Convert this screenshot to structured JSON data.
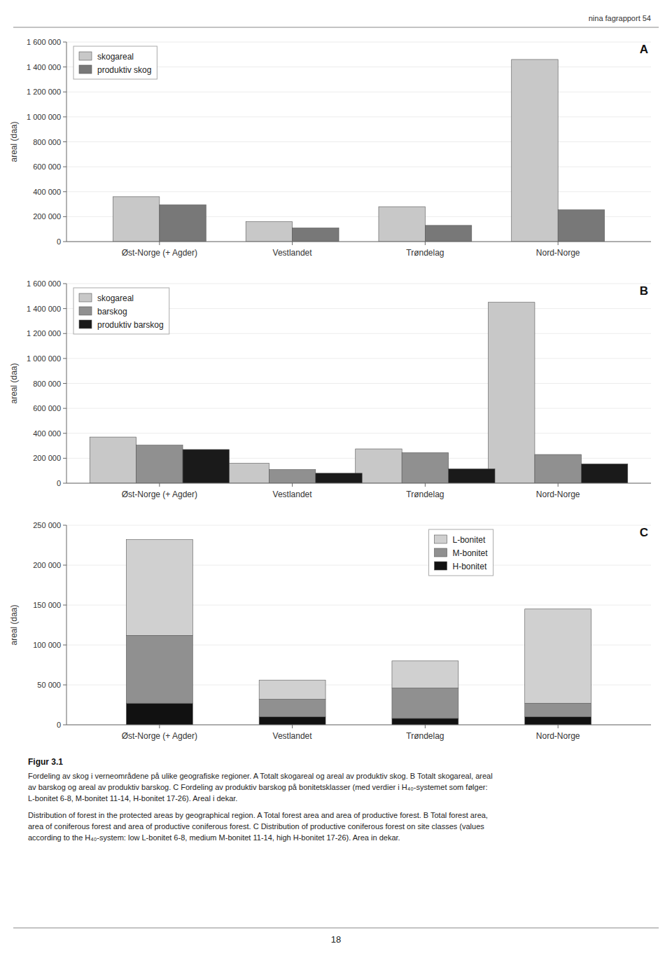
{
  "chart_data": [
    {
      "type": "bar",
      "title": "A",
      "y_label": "areal (daa)",
      "categories": [
        "Øst-Norge (+ Agder)",
        "Vestlandet",
        "Trøndelag",
        "Nord-Norge"
      ],
      "series": [
        {
          "name": "skogareal",
          "color": "#c8c8c8",
          "values": [
            360000,
            160000,
            280000,
            1460000
          ]
        },
        {
          "name": "produktiv skog",
          "color": "#787878",
          "values": [
            295000,
            110000,
            130000,
            255000
          ]
        }
      ],
      "ylim": [
        0,
        1600000
      ],
      "yticks": [
        0,
        {
          "value": 200000,
          "label": "200 000"
        },
        {
          "value": 400000,
          "label": "400 000"
        },
        {
          "value": 600000,
          "label": "600 000"
        },
        {
          "value": 800000,
          "label": "800 000"
        },
        {
          "value": 1000000,
          "label": "1 000 000"
        },
        {
          "value": 1200000,
          "label": "1 200 000"
        },
        {
          "value": 1400000,
          "label": "1 400 000"
        },
        {
          "value": 1600000,
          "label": "1 600 000"
        }
      ],
      "legend": "upper left"
    },
    {
      "type": "bar",
      "title": "B",
      "y_label": "areal (daa)",
      "categories": [
        "Øst-Norge (+ Agder)",
        "Vestlandet",
        "Trøndelag",
        "Nord-Norge"
      ],
      "series": [
        {
          "name": "skogareal",
          "color": "#c8c8c8",
          "values": [
            370000,
            160000,
            275000,
            1450000
          ]
        },
        {
          "name": "barskog",
          "color": "#909090",
          "values": [
            305000,
            110000,
            245000,
            230000
          ]
        },
        {
          "name": "produktiv barskog",
          "color": "#1a1a1a",
          "values": [
            270000,
            80000,
            115000,
            155000
          ]
        }
      ],
      "ylim": [
        0,
        1600000
      ],
      "yticks": [
        0,
        {
          "value": 200000,
          "label": "200 000"
        },
        {
          "value": 400000,
          "label": "400 000"
        },
        {
          "value": 600000,
          "label": "600 000"
        },
        {
          "value": 800000,
          "label": "800 000"
        },
        {
          "value": 1000000,
          "label": "1 000 000"
        },
        {
          "value": 1200000,
          "label": "1 200 000"
        },
        {
          "value": 1400000,
          "label": "1 400 000"
        },
        {
          "value": 1600000,
          "label": "1 600 000"
        }
      ],
      "legend": "upper left"
    },
    {
      "type": "bar",
      "title": "C",
      "y_label": "areal (daa)",
      "stacked": true,
      "categories": [
        "Øst-Norge (+ Agder)",
        "Vestlandet",
        "Trøndelag",
        "Nord-Norge"
      ],
      "series": [
        {
          "name": "H-bonitet",
          "color": "#111111",
          "values": [
            27000,
            10000,
            8000,
            10000
          ]
        },
        {
          "name": "M-bonitet",
          "color": "#909090",
          "values": [
            85000,
            22000,
            38000,
            17000
          ]
        },
        {
          "name": "L-bonitet",
          "color": "#d0d0d0",
          "values": [
            120000,
            24000,
            34000,
            118000
          ]
        }
      ],
      "ylim": [
        0,
        250000
      ],
      "yticks": [
        0,
        {
          "value": 50000,
          "label": "50 000"
        },
        {
          "value": 100000,
          "label": "100 000"
        },
        {
          "value": 150000,
          "label": "150 000"
        },
        {
          "value": 200000,
          "label": "200 000"
        },
        {
          "value": 250000,
          "label": "250 000"
        }
      ],
      "legend": "upper right"
    }
  ],
  "header": "nina fagrapport 54",
  "figure_label": "Figur 3.1",
  "caption": [
    "Fordeling av skog i verneområdene på ulike geografiske regioner. A Totalt skogareal og areal av produktiv skog. B Totalt skogareal, areal",
    "av barskog og areal av produktiv barskog. C Fordeling av produktiv barskog på bonitetsklasser (med verdier i H₄₀-systemet som følger:",
    "L-bonitet 6-8, M-bonitet 11-14, H-bonitet 17-26). Areal i dekar.",
    "Distribution of forest in the protected areas by geographical region. A Total forest area and area of productive forest. B Total forest area,",
    "area of coniferous forest and area of productive coniferous forest. C Distribution of productive coniferous forest on site classes (values",
    "according to the H₄₀-system: low L-bonitet 6-8, medium M-bonitet 11-14, high H-bonitet 17-26). Area in dekar."
  ],
  "page_number": "18"
}
